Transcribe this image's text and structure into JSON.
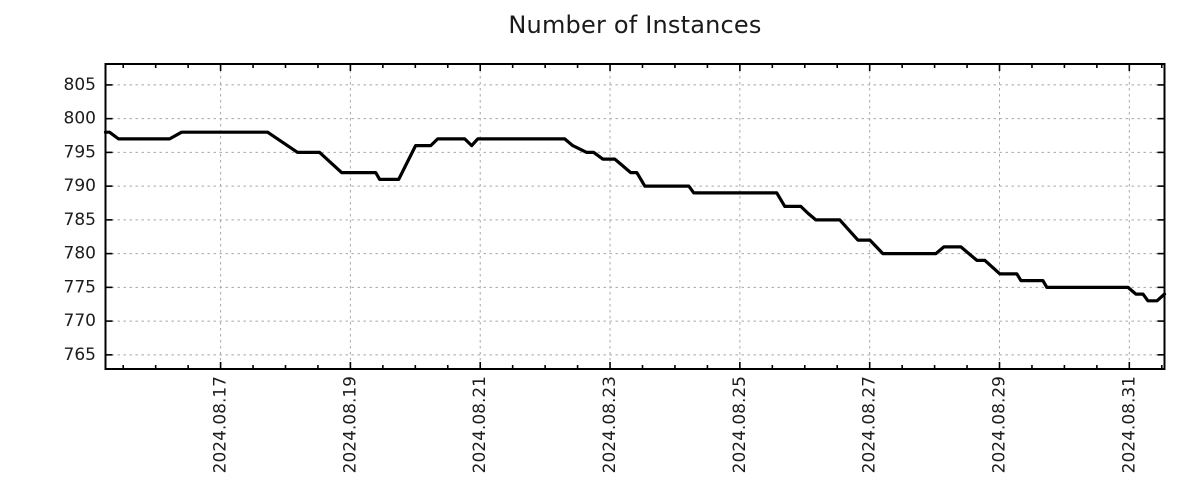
{
  "figure": {
    "background": "#ffffff"
  },
  "style": {
    "line_color": "#000000",
    "grid_color": "#a8a8a8",
    "spine_color": "#000000",
    "text_color": "#1c1c1c",
    "tick_font_px": 17
  },
  "chart_data": {
    "type": "line",
    "title": "Number of Instances",
    "xlabel": "",
    "ylabel": "",
    "legend": "none",
    "grid": {
      "show": true,
      "style": "dashed",
      "on": "major-ticks-only"
    },
    "x_axis": {
      "epoch": "days since 2024-08-15 00:00",
      "range_days": [
        0.227,
        16.542
      ],
      "major_tick_days": [
        2,
        4,
        6,
        8,
        10,
        12,
        14,
        16
      ],
      "tick_labels": [
        "2024.08.17",
        "2024.08.19",
        "2024.08.21",
        "2024.08.23",
        "2024.08.25",
        "2024.08.27",
        "2024.08.29",
        "2024.08.31"
      ],
      "minor_tick_step_days": 0.5,
      "label_rotation_deg": -90
    },
    "y_axis": {
      "range": [
        762.9,
        808.1
      ],
      "ticks": [
        765,
        770,
        775,
        780,
        785,
        790,
        795,
        800,
        805
      ]
    },
    "series": [
      {
        "name": "instances",
        "color": "#000000",
        "points": [
          [
            0.227,
            798
          ],
          [
            0.289,
            798
          ],
          [
            0.428,
            797
          ],
          [
            1.214,
            797
          ],
          [
            1.399,
            798
          ],
          [
            2.724,
            798
          ],
          [
            3.187,
            795
          ],
          [
            3.526,
            795
          ],
          [
            3.865,
            792
          ],
          [
            4.389,
            792
          ],
          [
            4.451,
            791
          ],
          [
            4.744,
            791
          ],
          [
            5.005,
            796
          ],
          [
            5.237,
            796
          ],
          [
            5.345,
            797
          ],
          [
            5.761,
            797
          ],
          [
            5.869,
            796
          ],
          [
            5.961,
            797
          ],
          [
            7.302,
            797
          ],
          [
            7.425,
            796
          ],
          [
            7.641,
            795
          ],
          [
            7.749,
            795
          ],
          [
            7.888,
            794
          ],
          [
            8.073,
            794
          ],
          [
            8.196,
            793
          ],
          [
            8.319,
            792
          ],
          [
            8.412,
            792
          ],
          [
            8.535,
            790
          ],
          [
            9.213,
            790
          ],
          [
            9.29,
            789
          ],
          [
            10.569,
            789
          ],
          [
            10.693,
            787
          ],
          [
            10.939,
            787
          ],
          [
            11.047,
            786
          ],
          [
            11.17,
            785
          ],
          [
            11.54,
            785
          ],
          [
            11.818,
            782
          ],
          [
            12.003,
            782
          ],
          [
            12.203,
            780
          ],
          [
            13.02,
            780
          ],
          [
            13.143,
            781
          ],
          [
            13.405,
            781
          ],
          [
            13.652,
            779
          ],
          [
            13.775,
            779
          ],
          [
            14.006,
            777
          ],
          [
            14.268,
            777
          ],
          [
            14.33,
            776
          ],
          [
            14.669,
            776
          ],
          [
            14.73,
            775
          ],
          [
            15.979,
            775
          ],
          [
            16.102,
            774
          ],
          [
            16.21,
            774
          ],
          [
            16.287,
            773
          ],
          [
            16.426,
            773
          ],
          [
            16.542,
            774
          ]
        ]
      }
    ]
  }
}
